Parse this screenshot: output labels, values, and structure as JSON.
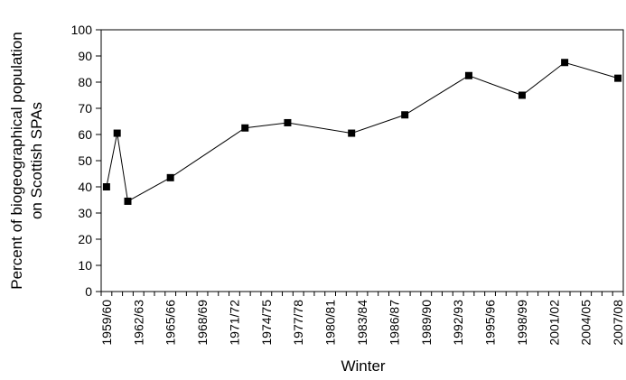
{
  "chart_data": {
    "type": "line",
    "xlabel": "Winter",
    "ylabel_line1": "Percent of biogeographical population",
    "ylabel_line2": "on Scottish SPAs",
    "ylim": [
      0,
      100
    ],
    "yticks": [
      0,
      10,
      20,
      30,
      40,
      50,
      60,
      70,
      80,
      90,
      100
    ],
    "x_start_year": 1959,
    "x_end_year": 2008,
    "x_tick_labels": [
      "1959/60",
      "1962/63",
      "1965/66",
      "1968/69",
      "1971/72",
      "1974/75",
      "1977/78",
      "1980/81",
      "1983/84",
      "1986/87",
      "1989/90",
      "1992/93",
      "1995/96",
      "1998/99",
      "2001/02",
      "2004/05",
      "2007/08"
    ],
    "grid": false,
    "legend": "none",
    "series": [
      {
        "marker": "square",
        "color": "#000000",
        "points": [
          {
            "x": "1959/60",
            "y": 40
          },
          {
            "x": "1960/61",
            "y": 60.5
          },
          {
            "x": "1961/62",
            "y": 34.5
          },
          {
            "x": "1965/66",
            "y": 43.5
          },
          {
            "x": "1972/73",
            "y": 62.5
          },
          {
            "x": "1976/77",
            "y": 64.5
          },
          {
            "x": "1982/83",
            "y": 60.5
          },
          {
            "x": "1987/88",
            "y": 67.5
          },
          {
            "x": "1993/94",
            "y": 82.5
          },
          {
            "x": "1998/99",
            "y": 75
          },
          {
            "x": "2002/03",
            "y": 87.5
          },
          {
            "x": "2007/08",
            "y": 81.5
          }
        ]
      }
    ]
  }
}
